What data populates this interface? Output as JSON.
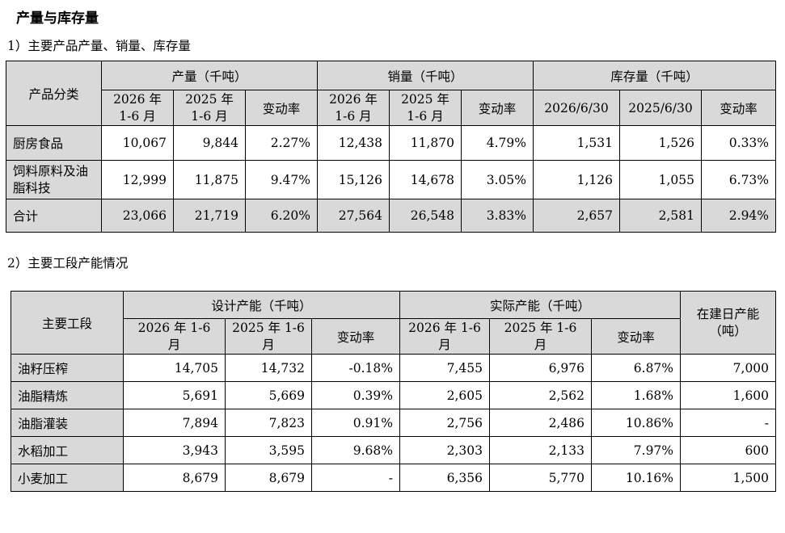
{
  "title": "产量与库存量",
  "section1": {
    "heading": "1）主要产品产量、销量、库存量",
    "header": {
      "category": "产品分类",
      "production": "产量（千吨）",
      "sales": "销量（千吨）",
      "inventory": "库存量（千吨）",
      "p_2026": "2026 年 1-6 月",
      "p_2025": "2025 年 1-6 月",
      "p_change": "变动率",
      "s_2026": "2026 年 1-6 月",
      "s_2025": "2025 年 1-6 月",
      "s_change": "变动率",
      "i_2026": "2026/6/30",
      "i_2025": "2025/6/30",
      "i_change": "变动率"
    },
    "rows": [
      {
        "name": "厨房食品",
        "cells": [
          "10,067",
          "9,844",
          "2.27%",
          "12,438",
          "11,870",
          "4.79%",
          "1,531",
          "1,526",
          "0.33%"
        ]
      },
      {
        "name": "饲料原料及油脂科技",
        "cells": [
          "12,999",
          "11,875",
          "9.47%",
          "15,126",
          "14,678",
          "3.05%",
          "1,126",
          "1,055",
          "6.73%"
        ]
      },
      {
        "name": "合计",
        "cells": [
          "23,066",
          "21,719",
          "6.20%",
          "27,564",
          "26,548",
          "3.83%",
          "2,657",
          "2,581",
          "2.94%"
        ]
      }
    ]
  },
  "section2": {
    "heading": "2）主要工段产能情况",
    "header": {
      "segment": "主要工段",
      "design": "设计产能（千吨）",
      "actual": "实际产能（千吨）",
      "construction": "在建日产能（吨）",
      "d_2026": "2026 年 1-6 月",
      "d_2025": "2025 年 1-6 月",
      "d_change": "变动率",
      "a_2026": "2026 年 1-6 月",
      "a_2025": "2025 年 1-6 月",
      "a_change": "变动率"
    },
    "rows": [
      {
        "name": "油籽压榨",
        "cells": [
          "14,705",
          "14,732",
          "-0.18%",
          "7,455",
          "6,976",
          "6.87%",
          "7,000"
        ]
      },
      {
        "name": "油脂精炼",
        "cells": [
          "5,691",
          "5,669",
          "0.39%",
          "2,605",
          "2,562",
          "1.68%",
          "1,600"
        ]
      },
      {
        "name": "油脂灌装",
        "cells": [
          "7,894",
          "7,823",
          "0.91%",
          "2,756",
          "2,486",
          "10.86%",
          "-"
        ]
      },
      {
        "name": "水稻加工",
        "cells": [
          "3,943",
          "3,595",
          "9.68%",
          "2,303",
          "2,133",
          "7.97%",
          "600"
        ]
      },
      {
        "name": "小麦加工",
        "cells": [
          "8,679",
          "8,679",
          "-",
          "6,356",
          "5,770",
          "10.16%",
          "1,500"
        ]
      }
    ]
  }
}
